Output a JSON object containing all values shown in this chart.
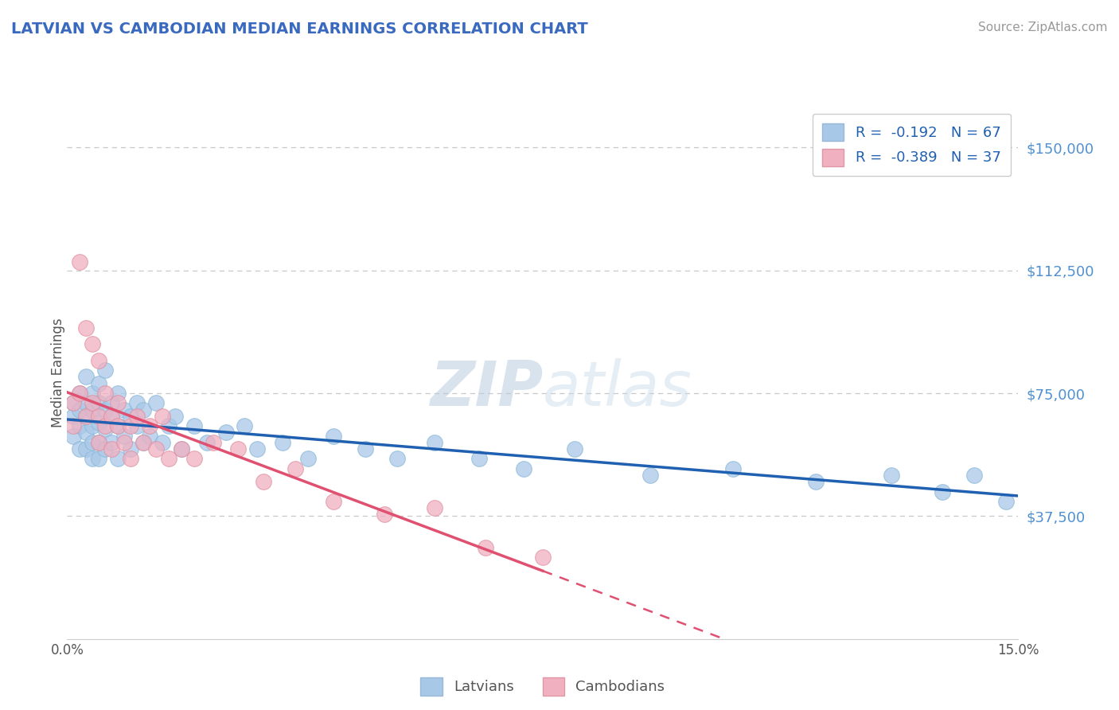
{
  "title": "LATVIAN VS CAMBODIAN MEDIAN EARNINGS CORRELATION CHART",
  "title_color": "#3a6abf",
  "source_text": "Source: ZipAtlas.com",
  "ylabel": "Median Earnings",
  "xlim": [
    0.0,
    0.15
  ],
  "ylim": [
    0,
    162500
  ],
  "yticks": [
    0,
    37500,
    75000,
    112500,
    150000
  ],
  "background_color": "#ffffff",
  "grid_color": "#c8c8c8",
  "latvian_color": "#a8c8e8",
  "cambodian_color": "#f0b0c0",
  "latvian_line_color": "#2060b0",
  "cambodian_line_color": "#e05070",
  "legend_latvian_label": "Latvians",
  "legend_cambodian_label": "Cambodians",
  "r_latvian": -0.192,
  "n_latvian": 67,
  "r_cambodian": -0.389,
  "n_cambodian": 37,
  "latvian_x": [
    0.001,
    0.001,
    0.001,
    0.002,
    0.002,
    0.002,
    0.002,
    0.003,
    0.003,
    0.003,
    0.003,
    0.003,
    0.004,
    0.004,
    0.004,
    0.004,
    0.004,
    0.005,
    0.005,
    0.005,
    0.005,
    0.005,
    0.006,
    0.006,
    0.006,
    0.006,
    0.007,
    0.007,
    0.007,
    0.008,
    0.008,
    0.008,
    0.009,
    0.009,
    0.01,
    0.01,
    0.011,
    0.011,
    0.012,
    0.012,
    0.013,
    0.014,
    0.015,
    0.016,
    0.017,
    0.018,
    0.02,
    0.022,
    0.025,
    0.028,
    0.03,
    0.034,
    0.038,
    0.042,
    0.047,
    0.052,
    0.058,
    0.065,
    0.072,
    0.08,
    0.092,
    0.105,
    0.118,
    0.13,
    0.138,
    0.143,
    0.148
  ],
  "latvian_y": [
    68000,
    62000,
    72000,
    65000,
    70000,
    58000,
    75000,
    63000,
    68000,
    72000,
    58000,
    80000,
    65000,
    70000,
    60000,
    75000,
    55000,
    66000,
    72000,
    60000,
    78000,
    55000,
    64000,
    70000,
    58000,
    82000,
    60000,
    68000,
    72000,
    65000,
    75000,
    55000,
    70000,
    62000,
    68000,
    58000,
    65000,
    72000,
    60000,
    70000,
    62000,
    72000,
    60000,
    65000,
    68000,
    58000,
    65000,
    60000,
    63000,
    65000,
    58000,
    60000,
    55000,
    62000,
    58000,
    55000,
    60000,
    55000,
    52000,
    58000,
    50000,
    52000,
    48000,
    50000,
    45000,
    50000,
    42000
  ],
  "cambodian_x": [
    0.001,
    0.001,
    0.002,
    0.002,
    0.003,
    0.003,
    0.004,
    0.004,
    0.005,
    0.005,
    0.005,
    0.006,
    0.006,
    0.007,
    0.007,
    0.008,
    0.008,
    0.009,
    0.01,
    0.01,
    0.011,
    0.012,
    0.013,
    0.014,
    0.015,
    0.016,
    0.018,
    0.02,
    0.023,
    0.027,
    0.031,
    0.036,
    0.042,
    0.05,
    0.058,
    0.066,
    0.075
  ],
  "cambodian_y": [
    65000,
    72000,
    115000,
    75000,
    95000,
    68000,
    90000,
    72000,
    85000,
    68000,
    60000,
    65000,
    75000,
    68000,
    58000,
    65000,
    72000,
    60000,
    65000,
    55000,
    68000,
    60000,
    65000,
    58000,
    68000,
    55000,
    58000,
    55000,
    60000,
    58000,
    48000,
    52000,
    42000,
    38000,
    40000,
    28000,
    25000
  ]
}
